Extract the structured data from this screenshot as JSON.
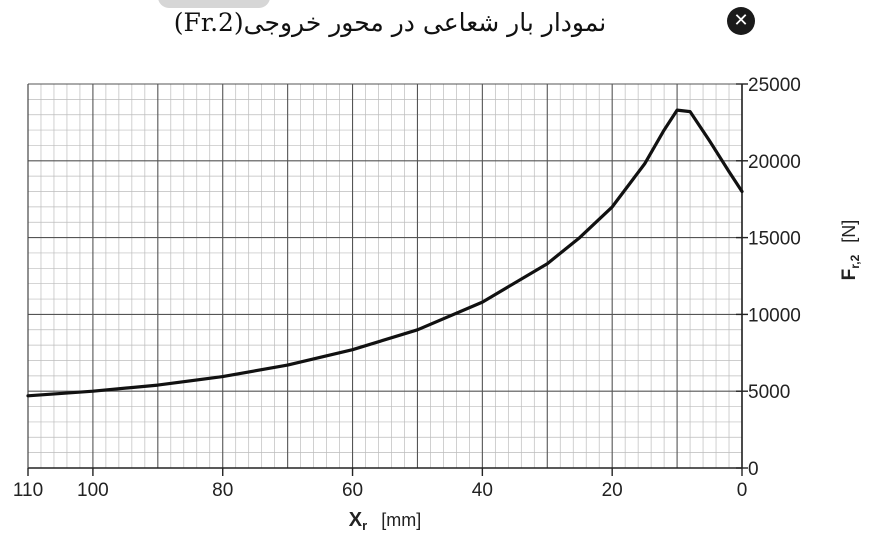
{
  "title": "نمودار بار شعاعی  در محور خروجی(Fr.2)",
  "close_glyph": "✕",
  "close_icon": "close-icon",
  "chart_data": {
    "type": "line",
    "xlabel": "Xr   [mm]",
    "xlabel_main": "X",
    "xlabel_sub": "r",
    "xlabel_unit": "[mm]",
    "ylabel": "Fr,2  [N]",
    "ylabel_main": "F",
    "ylabel_sub": "r,2",
    "ylabel_unit": "[N]",
    "xlim": [
      110,
      0
    ],
    "ylim": [
      0,
      25000
    ],
    "x_ticks": [
      110,
      100,
      80,
      60,
      40,
      20,
      0
    ],
    "y_ticks": [
      0,
      5000,
      10000,
      15000,
      20000,
      25000
    ],
    "grid": true,
    "series": [
      {
        "x": [
          110,
          100,
          90,
          80,
          70,
          60,
          50,
          40,
          30,
          25,
          20,
          15,
          12,
          10,
          8,
          5,
          2,
          0
        ],
        "y": [
          4700,
          5000,
          5400,
          5950,
          6700,
          7700,
          9000,
          10800,
          13300,
          15000,
          17000,
          19800,
          22000,
          23300,
          23200,
          21300,
          19300,
          18000
        ]
      }
    ]
  }
}
